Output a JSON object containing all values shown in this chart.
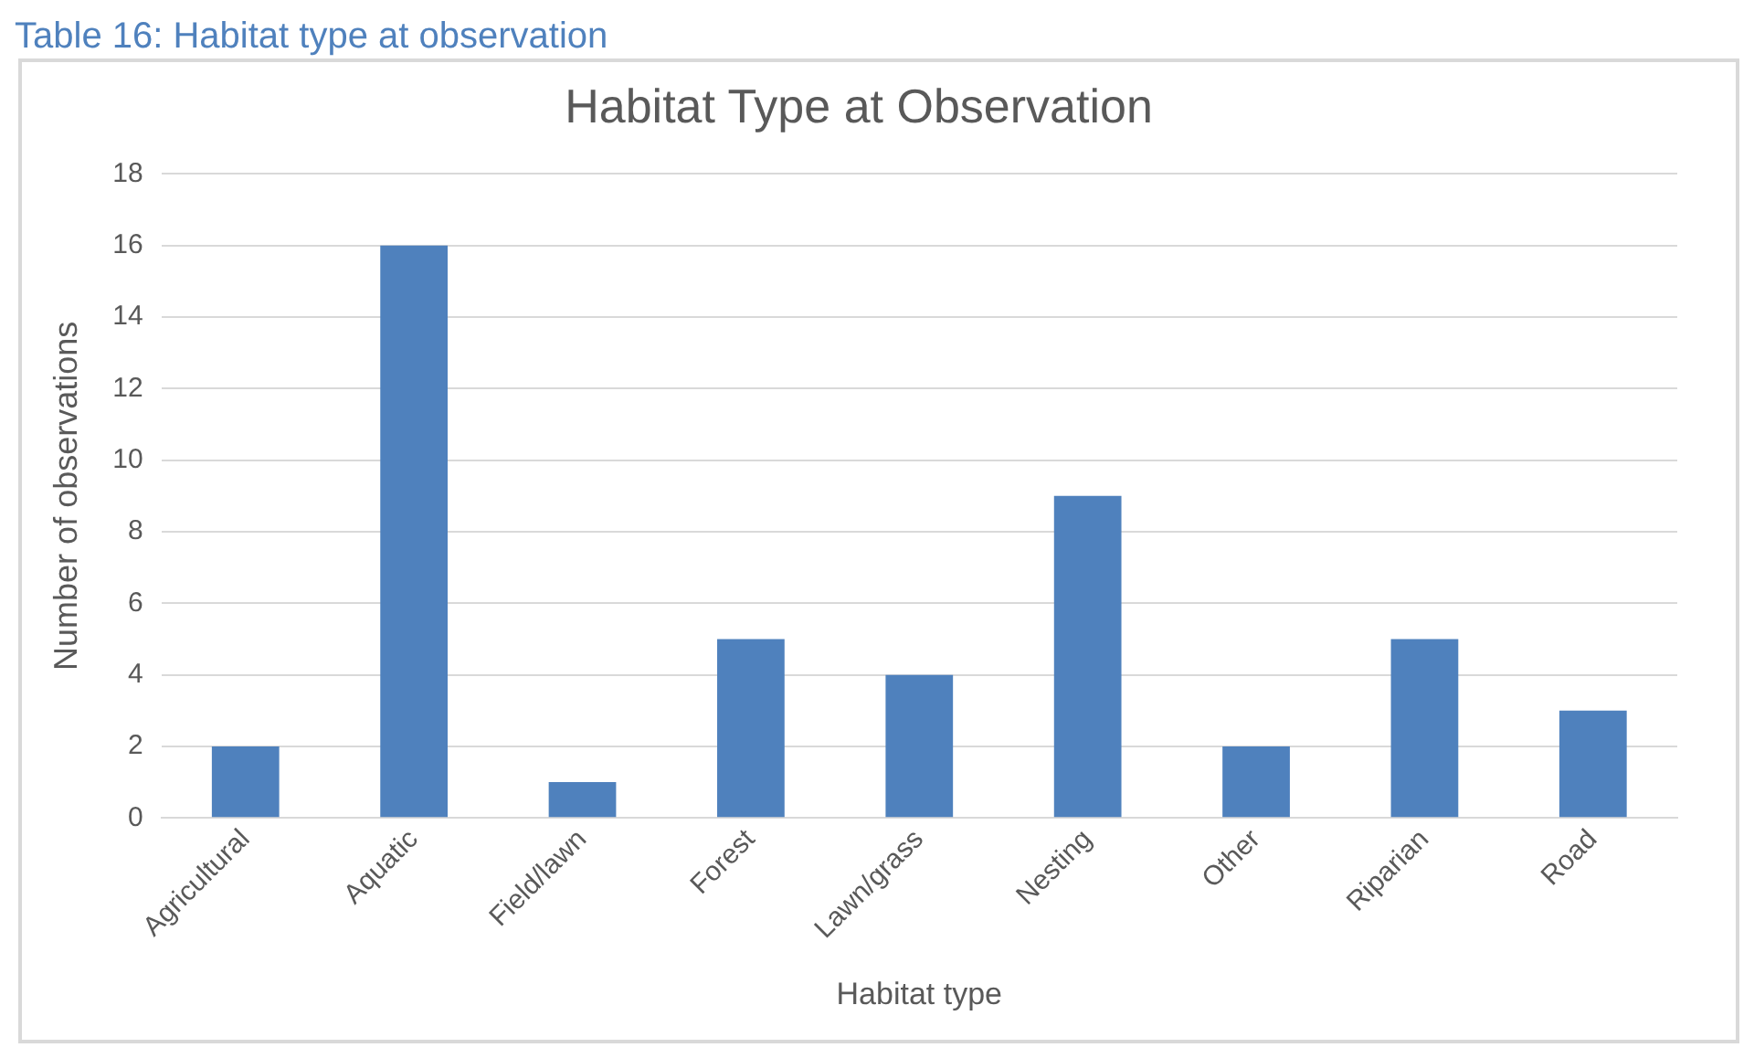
{
  "chart_data": {
    "type": "bar",
    "title": "Habitat Type at Observation",
    "xlabel": "Habitat type",
    "ylabel": "Number of observations",
    "annotations": [
      "Table 16: Habitat type at observation"
    ],
    "categories": [
      "Agricultural",
      "Aquatic",
      "Field/lawn",
      "Forest",
      "Lawn/grass",
      "Nesting",
      "Other",
      "Riparian",
      "Road"
    ],
    "values": [
      2,
      16,
      1,
      5,
      4,
      9,
      2,
      5,
      3
    ],
    "color": "#4f81bd",
    "ylim": [
      0,
      18
    ],
    "yticks": [
      0,
      2,
      4,
      6,
      8,
      10,
      12,
      14,
      16,
      18
    ],
    "grid": "y",
    "legend": false
  }
}
